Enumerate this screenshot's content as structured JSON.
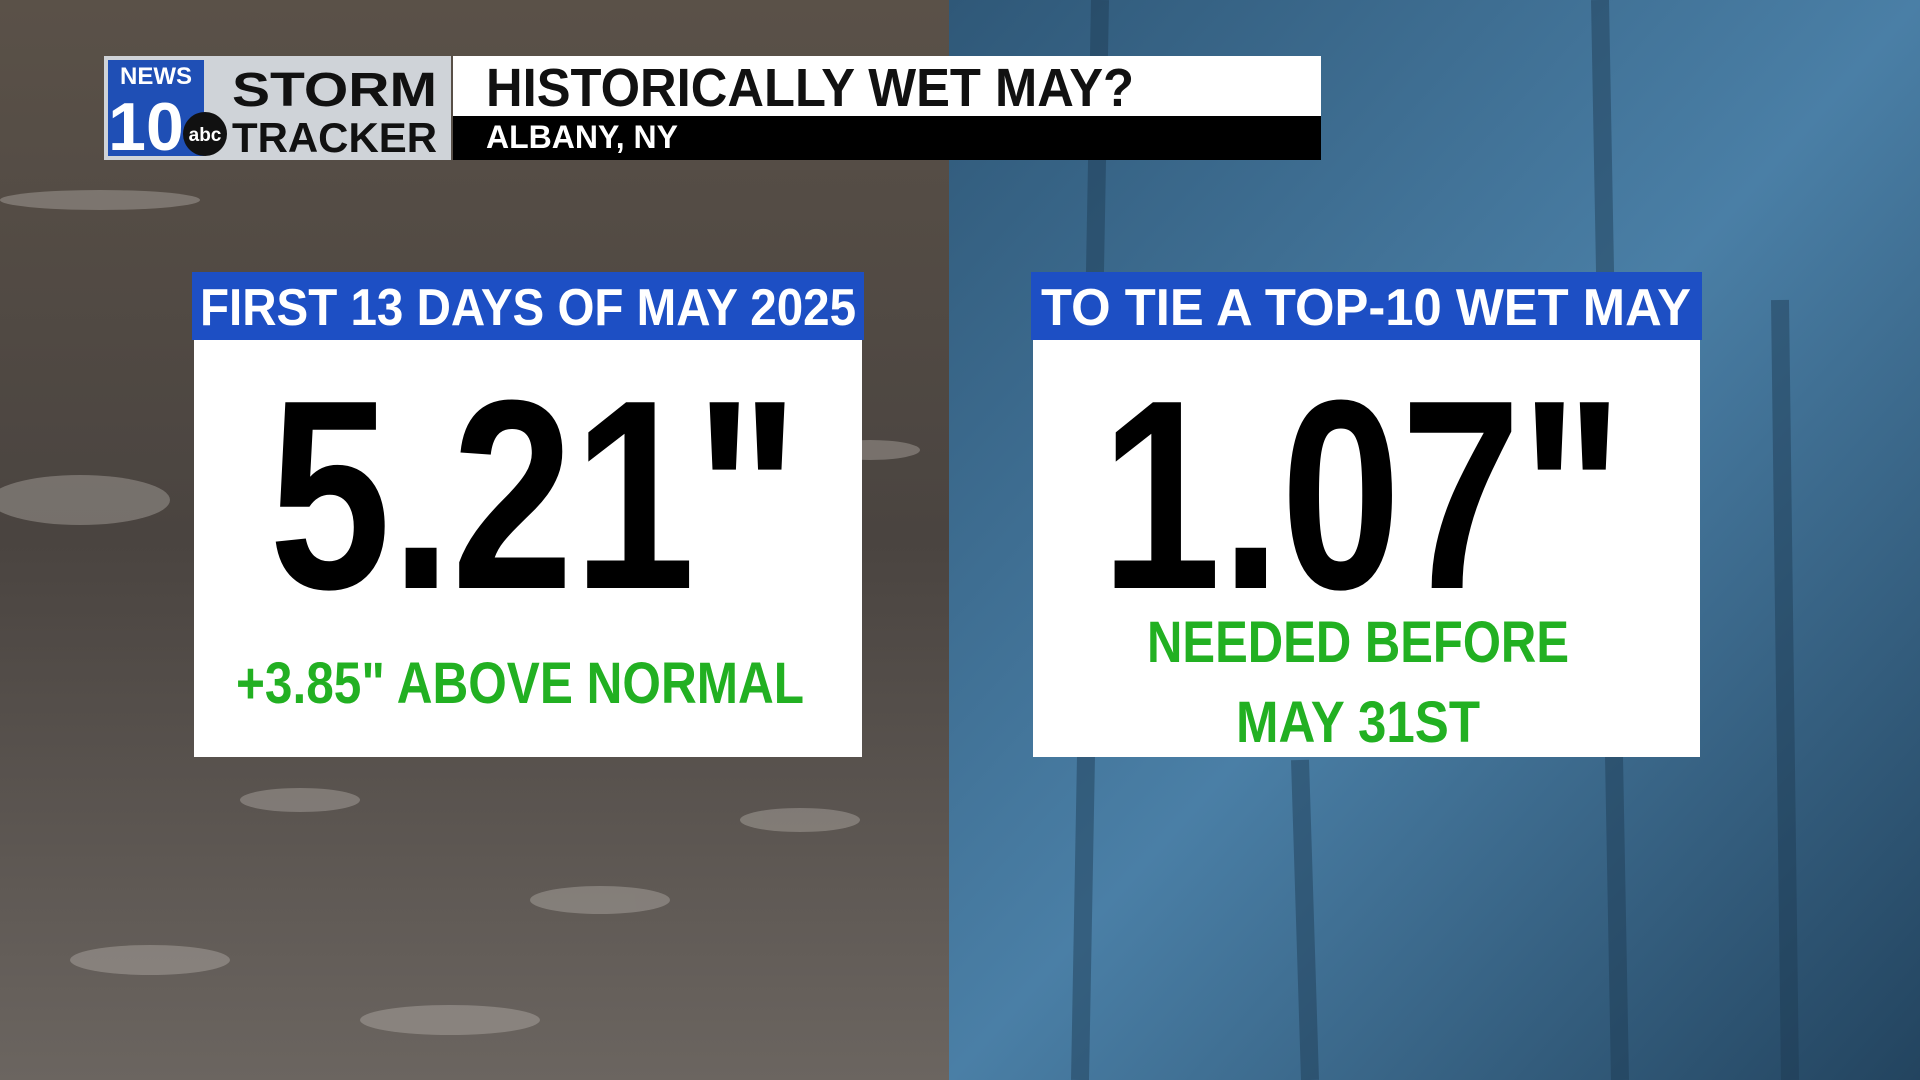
{
  "header": {
    "logo": {
      "station": "NEWS",
      "number": "10",
      "network": "abc",
      "line1": "STORM",
      "line2": "TRACKER"
    },
    "title": "HISTORICALLY WET MAY?",
    "location": "ALBANY, NY"
  },
  "cards": [
    {
      "heading": "FIRST 13 DAYS OF MAY 2025",
      "value": "5.21\"",
      "notes": [
        "+3.85\" ABOVE NORMAL"
      ]
    },
    {
      "heading": "TO TIE A TOP-10 WET MAY",
      "value": "1.07\"",
      "notes": [
        "NEEDED BEFORE",
        "MAY 31ST"
      ]
    }
  ]
}
